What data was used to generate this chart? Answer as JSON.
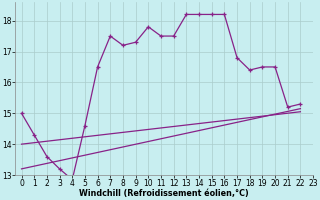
{
  "line1_x": [
    0,
    1,
    2,
    3,
    4,
    5,
    6,
    7,
    8,
    9,
    10,
    11,
    12,
    13,
    14,
    15,
    16,
    17,
    18,
    19,
    20,
    21,
    22
  ],
  "line1_y": [
    15.0,
    14.3,
    13.6,
    13.2,
    12.85,
    14.6,
    16.5,
    17.5,
    17.2,
    17.3,
    17.8,
    17.5,
    17.5,
    18.2,
    18.2,
    18.2,
    18.2,
    16.8,
    16.4,
    16.5,
    16.5,
    15.2,
    15.3
  ],
  "line2_x": [
    0,
    22
  ],
  "line2_y": [
    13.2,
    15.15
  ],
  "line3_x": [
    0,
    22
  ],
  "line3_y": [
    14.0,
    15.05
  ],
  "line_color": "#882288",
  "bg_color": "#c8eef0",
  "grid_color": "#aacccc",
  "xlabel": "Windchill (Refroidissement éolien,°C)",
  "xlim": [
    -0.5,
    23
  ],
  "ylim": [
    13,
    18.6
  ],
  "yticks": [
    13,
    14,
    15,
    16,
    17,
    18
  ],
  "xticks": [
    0,
    1,
    2,
    3,
    4,
    5,
    6,
    7,
    8,
    9,
    10,
    11,
    12,
    13,
    14,
    15,
    16,
    17,
    18,
    19,
    20,
    21,
    22,
    23
  ],
  "xlabel_fontsize": 5.8,
  "tick_fontsize": 5.5,
  "line_width": 0.9,
  "marker": "+",
  "marker_size": 3.5,
  "marker_edge_width": 0.9
}
